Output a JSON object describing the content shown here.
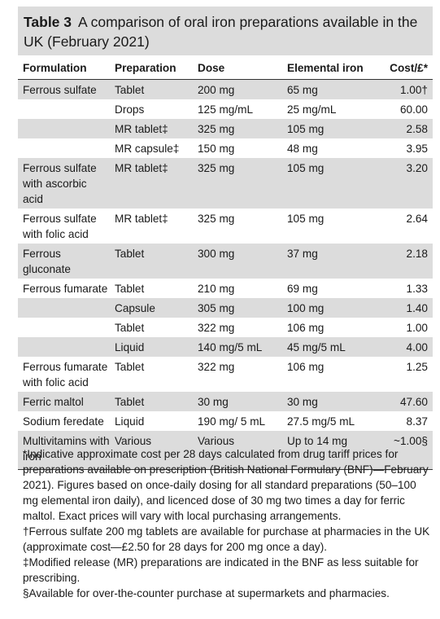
{
  "caption": {
    "label": "Table 3",
    "title": "A comparison of oral iron preparations available in the UK (February 2021)"
  },
  "headers": [
    "Formulation",
    "Preparation",
    "Dose",
    "Elemental iron",
    "Cost/£*"
  ],
  "rows": [
    {
      "formulation": "Ferrous sulfate",
      "preparation": "Tablet",
      "dose": "200 mg",
      "elemental": "65 mg",
      "cost": "1.00†",
      "shaded": true
    },
    {
      "formulation": "",
      "preparation": "Drops",
      "dose": "125 mg/mL",
      "elemental": "25 mg/mL",
      "cost": "60.00",
      "shaded": false
    },
    {
      "formulation": "",
      "preparation": "MR tablet‡",
      "dose": "325 mg",
      "elemental": "105 mg",
      "cost": "2.58",
      "shaded": true
    },
    {
      "formulation": "",
      "preparation": "MR capsule‡",
      "dose": "150 mg",
      "elemental": "48 mg",
      "cost": "3.95",
      "shaded": false
    },
    {
      "formulation": "Ferrous sulfate with ascorbic acid",
      "preparation": "MR tablet‡",
      "dose": "325 mg",
      "elemental": "105 mg",
      "cost": "3.20",
      "shaded": true
    },
    {
      "formulation": "Ferrous sulfate with folic acid",
      "preparation": "MR tablet‡",
      "dose": "325 mg",
      "elemental": "105 mg",
      "cost": "2.64",
      "shaded": false
    },
    {
      "formulation": "Ferrous gluconate",
      "preparation": "Tablet",
      "dose": "300 mg",
      "elemental": "37 mg",
      "cost": "2.18",
      "shaded": true
    },
    {
      "formulation": "Ferrous fumarate",
      "preparation": "Tablet",
      "dose": "210 mg",
      "elemental": "69 mg",
      "cost": "1.33",
      "shaded": false
    },
    {
      "formulation": "",
      "preparation": "Capsule",
      "dose": "305 mg",
      "elemental": "100 mg",
      "cost": "1.40",
      "shaded": true
    },
    {
      "formulation": "",
      "preparation": "Tablet",
      "dose": "322 mg",
      "elemental": "106 mg",
      "cost": "1.00",
      "shaded": false
    },
    {
      "formulation": "",
      "preparation": "Liquid",
      "dose": "140 mg/5 mL",
      "elemental": "45 mg/5 mL",
      "cost": "4.00",
      "shaded": true
    },
    {
      "formulation": "Ferrous fumarate with folic acid",
      "preparation": "Tablet",
      "dose": "322 mg",
      "elemental": "106 mg",
      "cost": "1.25",
      "shaded": false
    },
    {
      "formulation": "Ferric maltol",
      "preparation": "Tablet",
      "dose": "30 mg",
      "elemental": "30 mg",
      "cost": "47.60",
      "shaded": true
    },
    {
      "formulation": "Sodium feredate",
      "preparation": "Liquid",
      "dose": "190 mg/ 5 mL",
      "elemental": "27.5 mg/5 mL",
      "cost": "8.37",
      "shaded": false
    },
    {
      "formulation": "Multivitamins with iron",
      "preparation": "Various",
      "dose": "Various",
      "elemental": "Up to 14 mg",
      "cost": "~1.00§",
      "shaded": true
    }
  ],
  "footnotes": [
    "*Indicative approximate cost per 28 days calculated from drug tariff prices for preparations available on prescription (British National Formulary (BNF)—February 2021). Figures based on once-daily dosing for all standard preparations (50–100 mg elemental iron daily), and licenced dose of 30 mg two times a day for ferric maltol. Exact prices will vary with local purchasing arrangements.",
    "†Ferrous sulfate 200 mg tablets are available for purchase at pharmacies in the UK (approximate cost—£2.50 for 28 days for 200 mg once a day).",
    "‡Modified release (MR) preparations are indicated in the BNF as less suitable for prescribing.",
    "§Available for over-the-counter purchase at supermarkets and pharmacies."
  ]
}
